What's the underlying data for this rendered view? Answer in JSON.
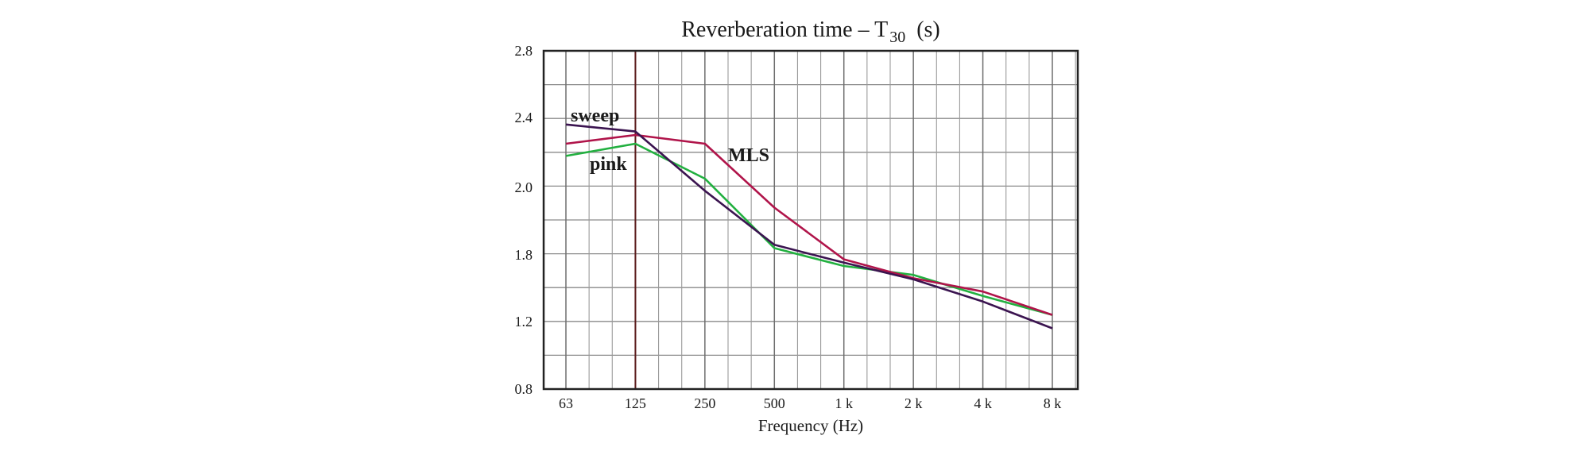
{
  "chart_data": {
    "type": "line",
    "title": {
      "main": "Reverberation time – T",
      "sub": "30",
      "unit": "(s)"
    },
    "xlabel": "Frequency (Hz)",
    "ylabel": "",
    "x_scale": "log2-octave",
    "categories": [
      "63",
      "125",
      "250",
      "500",
      "1 k",
      "2 k",
      "4 k",
      "8 k"
    ],
    "y_ticks": [
      "0.8",
      "1.2",
      "1.8",
      "2.0",
      "2.4",
      "2.8"
    ],
    "grid": true,
    "series": [
      {
        "name": "sweep",
        "color": "#3b1450",
        "values": [
          2.36,
          2.32,
          1.99,
          1.83,
          1.73,
          1.58,
          1.38,
          1.16
        ]
      },
      {
        "name": "MLS",
        "color": "#b0144a",
        "values": [
          2.25,
          2.3,
          2.25,
          1.94,
          1.76,
          1.59,
          1.47,
          1.26
        ]
      },
      {
        "name": "pink",
        "color": "#22b040",
        "values": [
          2.18,
          2.25,
          2.05,
          1.82,
          1.7,
          1.62,
          1.43,
          1.26
        ]
      }
    ],
    "reference_line": {
      "category": "125",
      "color": "#5a1a1a"
    }
  }
}
